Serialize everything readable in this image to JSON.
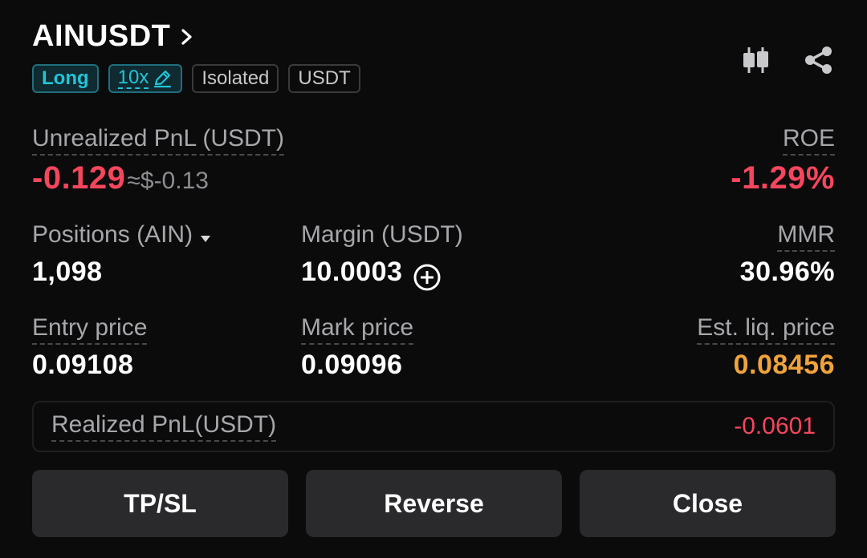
{
  "header": {
    "symbol": "AINUSDT",
    "tags": {
      "side": "Long",
      "leverage": "10x",
      "margin_mode": "Isolated",
      "settle_coin": "USDT"
    },
    "icons": [
      "candlestick-chart-icon",
      "share-icon"
    ]
  },
  "pnl": {
    "unrealized_label": "Unrealized PnL (USDT)",
    "unrealized_value": "-0.129",
    "unrealized_approx": "≈$-0.13",
    "roe_label": "ROE",
    "roe_value": "-1.29%"
  },
  "stats": {
    "positions_label": "Positions (AIN)",
    "positions_value": "1,098",
    "margin_label": "Margin (USDT)",
    "margin_value": "10.0003",
    "mmr_label": "MMR",
    "mmr_value": "30.96%",
    "entry_label": "Entry price",
    "entry_value": "0.09108",
    "mark_label": "Mark price",
    "mark_value": "0.09096",
    "liq_label": "Est. liq. price",
    "liq_value": "0.08456"
  },
  "realized": {
    "label": "Realized PnL(USDT)",
    "value": "-0.0601"
  },
  "buttons": {
    "tpsl": "TP/SL",
    "reverse": "Reverse",
    "close": "Close"
  },
  "colors": {
    "negative": "#f6465d",
    "accent": "#22c4d8",
    "liquidation": "#f0a33b"
  }
}
